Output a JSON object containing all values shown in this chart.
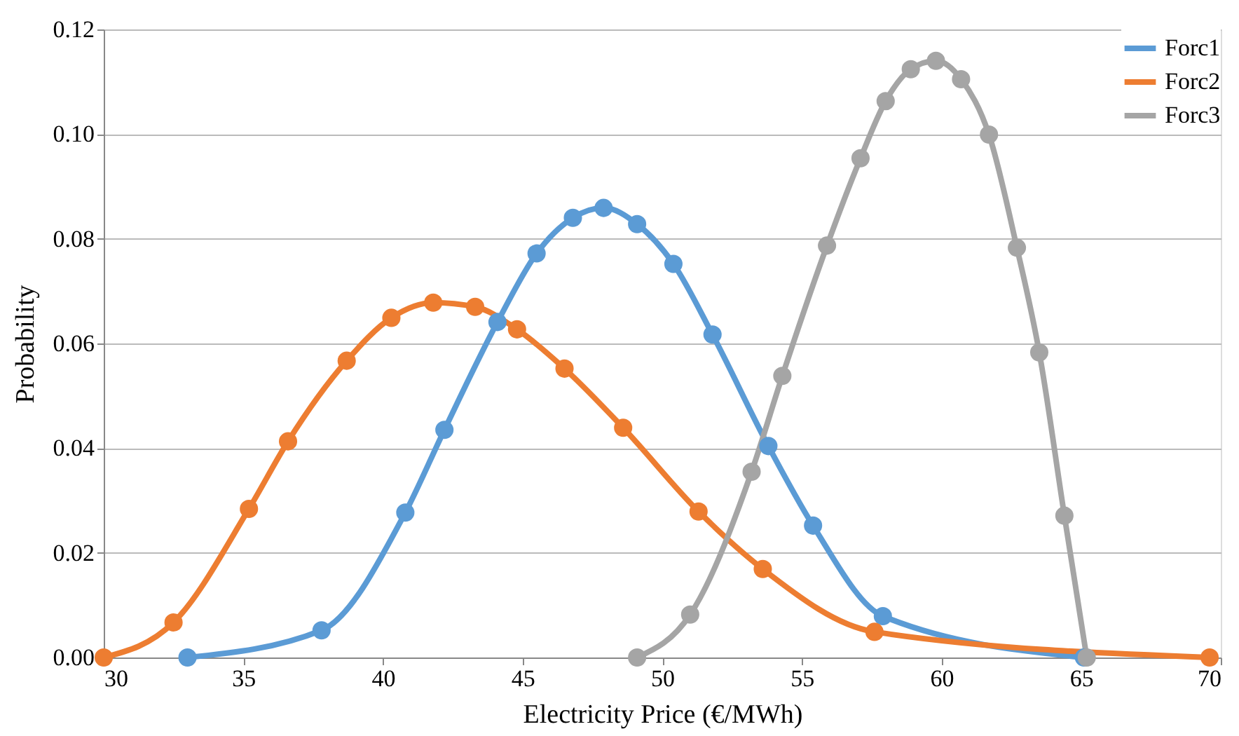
{
  "chart_data": {
    "type": "line",
    "xlabel": "Electricity Price (€/MWh)",
    "ylabel": "Probability",
    "xlim": [
      30,
      70
    ],
    "xticks": [
      30,
      35,
      40,
      45,
      50,
      55,
      60,
      65,
      70
    ],
    "ylim": [
      0,
      0.12
    ],
    "yticks": [
      {
        "value": 0,
        "label": "0.00"
      },
      {
        "value": 0.02,
        "label": "0.02"
      },
      {
        "value": 0.04,
        "label": "0.04"
      },
      {
        "value": 0.06,
        "label": "0.06"
      },
      {
        "value": 0.08,
        "label": "0.08"
      },
      {
        "value": 0.1,
        "label": "0.10"
      },
      {
        "value": 0.12,
        "label": "0.12"
      }
    ],
    "grid": "y",
    "legend": "top right",
    "marker": "circle",
    "line_style": "solid",
    "series": [
      {
        "name": "Forc1",
        "color": "#5b9bd5",
        "x": [
          33.0,
          37.8,
          40.8,
          42.2,
          44.1,
          45.5,
          46.8,
          47.9,
          49.1,
          50.4,
          51.8,
          53.8,
          55.4,
          57.9,
          65.1
        ],
        "values": [
          0,
          0.0052,
          0.0277,
          0.0435,
          0.0641,
          0.0772,
          0.084,
          0.0859,
          0.0828,
          0.0752,
          0.0617,
          0.0404,
          0.0252,
          0.0079,
          0
        ]
      },
      {
        "name": "Forc2",
        "color": "#ed7d31",
        "x": [
          30.0,
          32.5,
          35.2,
          36.6,
          38.7,
          40.3,
          41.8,
          43.3,
          44.8,
          46.5,
          48.6,
          51.3,
          53.6,
          57.6,
          69.6
        ],
        "values": [
          0,
          0.0067,
          0.0284,
          0.0413,
          0.0567,
          0.0649,
          0.0678,
          0.067,
          0.0627,
          0.0552,
          0.0439,
          0.0279,
          0.0169,
          0.0049,
          0
        ]
      },
      {
        "name": "Forc3",
        "color": "#a5a5a5",
        "x": [
          49.1,
          51.0,
          53.2,
          54.3,
          55.9,
          57.1,
          58.0,
          58.9,
          59.8,
          60.7,
          61.7,
          62.7,
          63.5,
          64.4,
          65.2
        ],
        "values": [
          0,
          0.0082,
          0.0355,
          0.0538,
          0.0787,
          0.0954,
          0.1063,
          0.1124,
          0.114,
          0.1105,
          0.0999,
          0.0783,
          0.0583,
          0.0271,
          0
        ]
      }
    ]
  }
}
